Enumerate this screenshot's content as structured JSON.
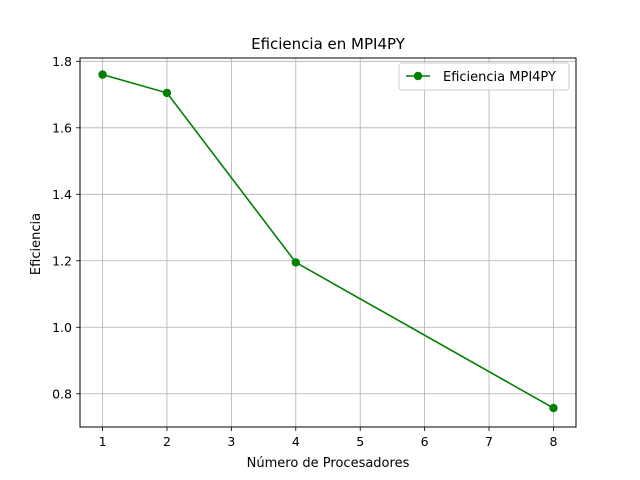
{
  "chart_data": {
    "type": "line",
    "title": "Eficiencia en MPI4PY",
    "xlabel": "Número de Procesadores",
    "ylabel": "Eficiencia",
    "x": [
      1,
      2,
      4,
      8
    ],
    "series": [
      {
        "name": "Eficiencia MPI4PY",
        "values": [
          1.76,
          1.705,
          1.195,
          0.757
        ],
        "color": "#008000",
        "marker": "circle"
      }
    ],
    "xlim": [
      0.65,
      8.35
    ],
    "ylim": [
      0.7,
      1.81
    ],
    "xticks": [
      1,
      2,
      3,
      4,
      5,
      6,
      7,
      8
    ],
    "xtick_labels": [
      "1",
      "2",
      "3",
      "4",
      "5",
      "6",
      "7",
      "8"
    ],
    "yticks": [
      0.8,
      1.0,
      1.2,
      1.4,
      1.6,
      1.8
    ],
    "ytick_labels": [
      "0.8",
      "1.0",
      "1.2",
      "1.4",
      "1.6",
      "1.8"
    ],
    "grid": true,
    "legend_position": "top-right"
  }
}
